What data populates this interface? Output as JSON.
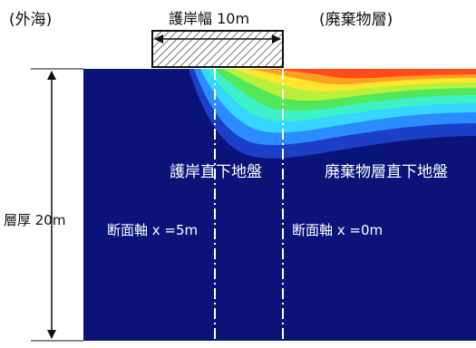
{
  "labels": {
    "outer_sea": "(外海)",
    "waste_layer": "(廃棄物層)",
    "revetment_width": "護岸幅 10m",
    "layer_thickness": "層厚 20m",
    "under_revetment": "護岸直下地盤",
    "under_waste": "廃棄物層直下地盤",
    "section_x5": "断面軸 x =5m",
    "section_x0": "断面軸 x =0m"
  },
  "colors": {
    "ground": "#0a1478",
    "hatch": "#555555",
    "ink": "#111111"
  },
  "icons": {
    "dimension_arrow_horizontal": "double-arrow-horizontal-icon",
    "dimension_arrow_vertical": "double-arrow-vertical-icon"
  }
}
